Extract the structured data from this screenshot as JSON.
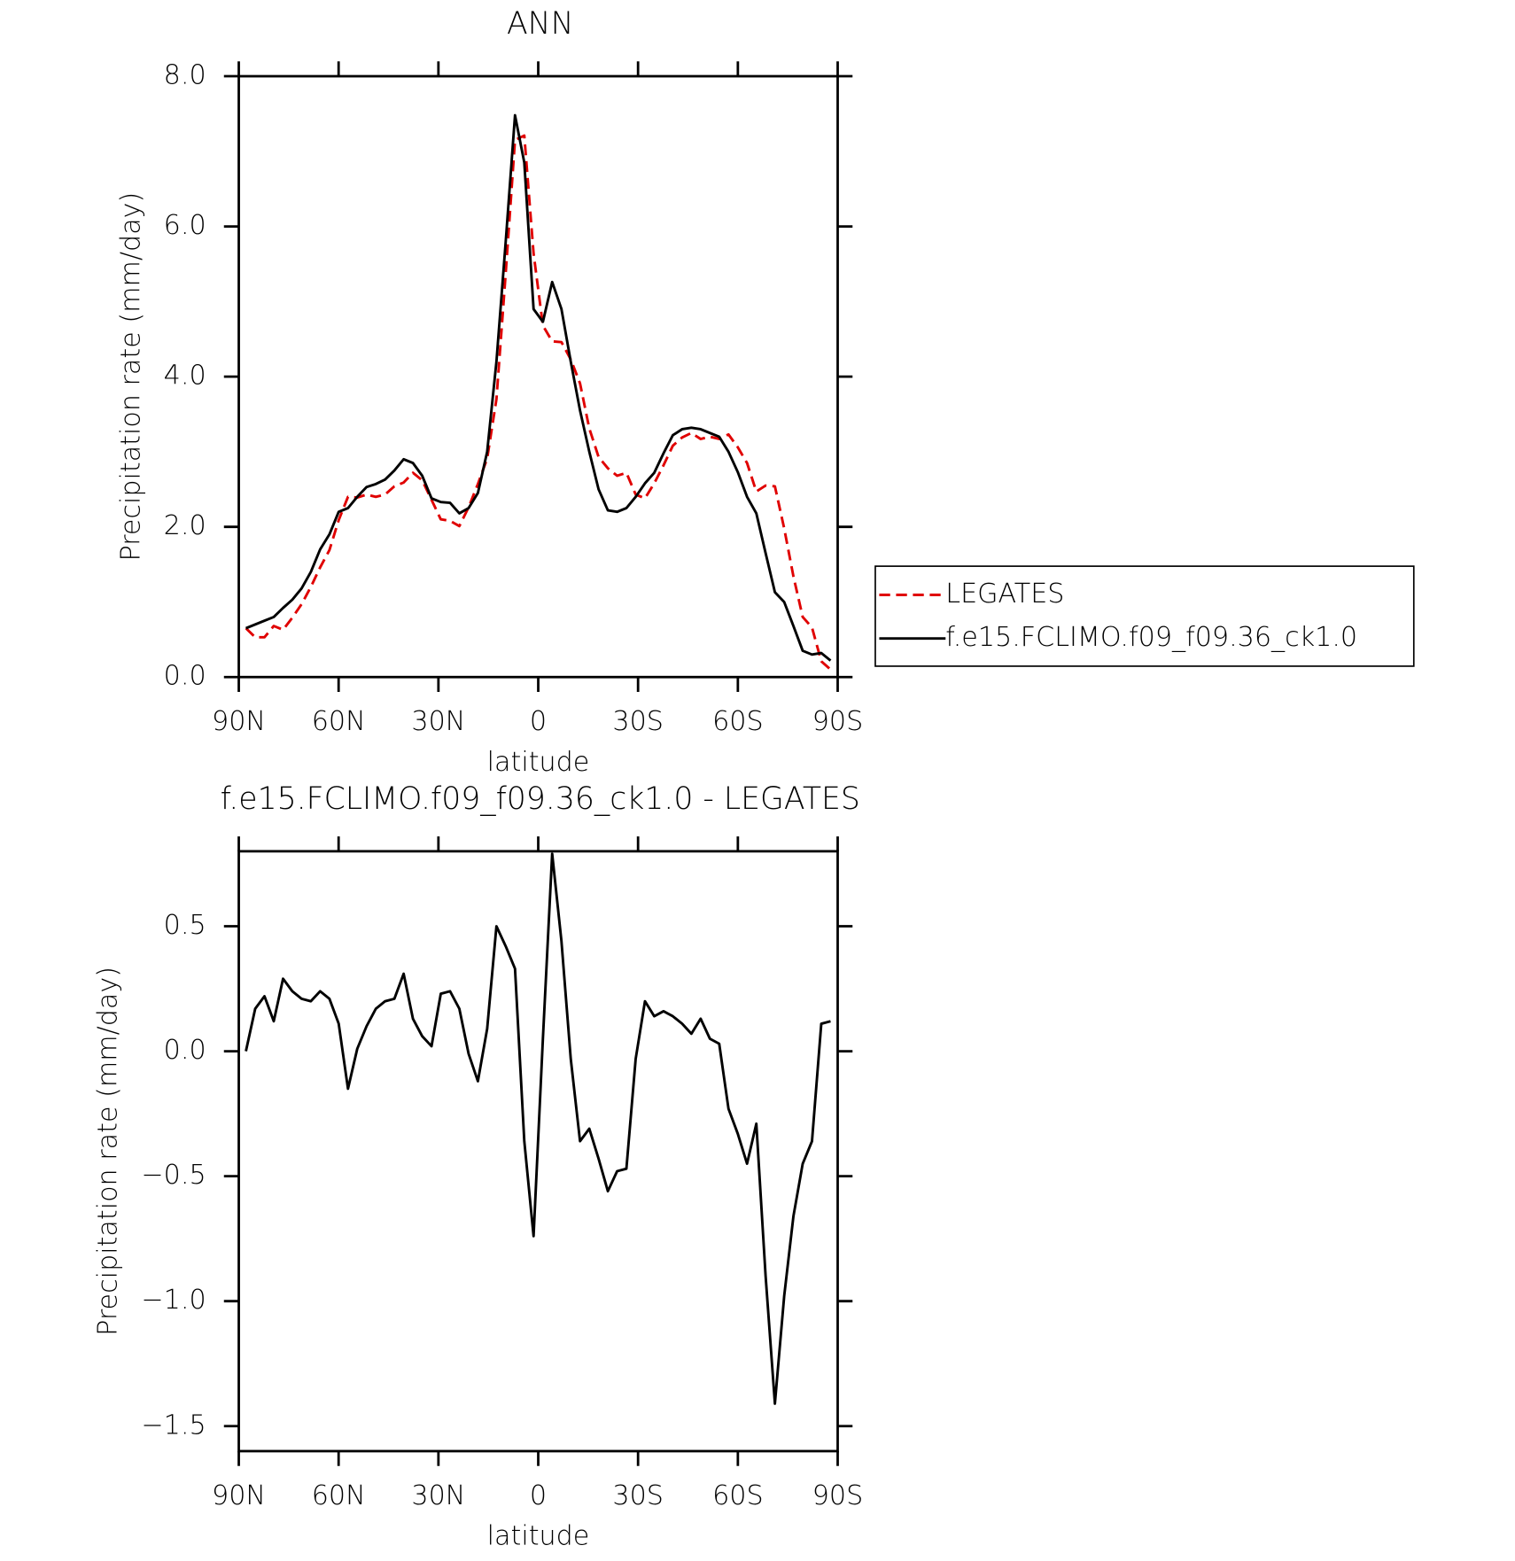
{
  "chart_data": [
    {
      "type": "line",
      "title": "ANN",
      "xlabel": "latitude",
      "ylabel": "Precipitation rate (mm/day)",
      "x": [
        87.86,
        85.07,
        82.28,
        79.49,
        76.7,
        73.92,
        71.13,
        68.34,
        65.55,
        62.76,
        59.97,
        57.18,
        54.39,
        51.6,
        48.81,
        46.03,
        43.24,
        40.45,
        37.66,
        34.87,
        32.08,
        29.29,
        26.5,
        23.71,
        20.93,
        18.14,
        15.35,
        12.56,
        9.77,
        6.98,
        4.19,
        1.4,
        -1.4,
        -4.19,
        -6.98,
        -9.77,
        -12.56,
        -15.35,
        -18.14,
        -20.93,
        -23.71,
        -26.5,
        -29.29,
        -32.08,
        -34.87,
        -37.66,
        -40.45,
        -43.24,
        -46.03,
        -48.81,
        -51.6,
        -54.39,
        -57.18,
        -59.97,
        -62.76,
        -65.55,
        -68.34,
        -71.13,
        -73.92,
        -76.7,
        -79.49,
        -82.28,
        -85.07,
        -87.86
      ],
      "series": [
        {
          "name": "LEGATES",
          "color": "#e00000",
          "dash": true,
          "values": [
            0.65,
            0.53,
            0.53,
            0.68,
            0.63,
            0.79,
            0.97,
            1.2,
            1.46,
            1.69,
            2.09,
            2.4,
            2.39,
            2.43,
            2.4,
            2.43,
            2.54,
            2.59,
            2.72,
            2.62,
            2.36,
            2.1,
            2.08,
            2.01,
            2.26,
            2.57,
            2.91,
            3.7,
            5.38,
            7.15,
            7.21,
            5.64,
            4.68,
            4.47,
            4.46,
            4.23,
            3.91,
            3.31,
            2.93,
            2.78,
            2.68,
            2.72,
            2.43,
            2.38,
            2.58,
            2.82,
            3.08,
            3.19,
            3.25,
            3.17,
            3.2,
            3.17,
            3.23,
            3.06,
            2.85,
            2.47,
            2.55,
            2.54,
            1.98,
            1.34,
            0.8,
            0.66,
            0.21,
            0.1
          ]
        },
        {
          "name": "f.e15.FCLIMO.f09_f09.36_ck1.0",
          "color": "#000000",
          "dash": false,
          "values": [
            0.65,
            0.7,
            0.75,
            0.8,
            0.92,
            1.03,
            1.18,
            1.4,
            1.7,
            1.9,
            2.2,
            2.25,
            2.4,
            2.53,
            2.57,
            2.63,
            2.75,
            2.9,
            2.85,
            2.68,
            2.38,
            2.33,
            2.32,
            2.18,
            2.25,
            2.45,
            3.0,
            4.2,
            5.8,
            7.48,
            6.85,
            4.9,
            4.73,
            5.26,
            4.9,
            4.2,
            3.55,
            3.0,
            2.5,
            2.22,
            2.2,
            2.25,
            2.4,
            2.58,
            2.72,
            2.98,
            3.22,
            3.3,
            3.32,
            3.3,
            3.25,
            3.2,
            3.0,
            2.73,
            2.4,
            2.18,
            1.65,
            1.13,
            1.0,
            0.68,
            0.35,
            0.3,
            0.32,
            0.22
          ]
        }
      ],
      "xlim": [
        90,
        -90
      ],
      "xticks": [
        {
          "value": 90,
          "label": "90N"
        },
        {
          "value": 60,
          "label": "60N"
        },
        {
          "value": 30,
          "label": "30N"
        },
        0,
        {
          "value": -30,
          "label": "30S"
        },
        {
          "value": -60,
          "label": "60S"
        },
        {
          "value": -90,
          "label": "90S"
        }
      ],
      "ylim": [
        0,
        8
      ],
      "yticks": [
        {
          "value": 0,
          "label": "0.0"
        },
        {
          "value": 2,
          "label": "2.0"
        },
        {
          "value": 4,
          "label": "4.0"
        },
        {
          "value": 6,
          "label": "6.0"
        },
        {
          "value": 8,
          "label": "8.0"
        }
      ],
      "legend": "right"
    },
    {
      "type": "line",
      "title": "f.e15.FCLIMO.f09_f09.36_ck1.0 - LEGATES",
      "xlabel": "latitude",
      "ylabel": "Precipitation rate (mm/day)",
      "x": [
        87.86,
        85.07,
        82.28,
        79.49,
        76.7,
        73.92,
        71.13,
        68.34,
        65.55,
        62.76,
        59.97,
        57.18,
        54.39,
        51.6,
        48.81,
        46.03,
        43.24,
        40.45,
        37.66,
        34.87,
        32.08,
        29.29,
        26.5,
        23.71,
        20.93,
        18.14,
        15.35,
        12.56,
        9.77,
        6.98,
        4.19,
        1.4,
        -1.4,
        -4.19,
        -6.98,
        -9.77,
        -12.56,
        -15.35,
        -18.14,
        -20.93,
        -23.71,
        -26.5,
        -29.29,
        -32.08,
        -34.87,
        -37.66,
        -40.45,
        -43.24,
        -46.03,
        -48.81,
        -51.6,
        -54.39,
        -57.18,
        -59.97,
        -62.76,
        -65.55,
        -68.34,
        -71.13,
        -73.92,
        -76.7,
        -79.49,
        -82.28,
        -85.07,
        -87.86
      ],
      "series": [
        {
          "color": "#000000",
          "dash": false,
          "values": [
            0.0,
            0.17,
            0.22,
            0.12,
            0.29,
            0.24,
            0.21,
            0.2,
            0.24,
            0.21,
            0.11,
            -0.15,
            0.01,
            0.1,
            0.17,
            0.2,
            0.21,
            0.31,
            0.13,
            0.06,
            0.02,
            0.23,
            0.24,
            0.17,
            -0.01,
            -0.12,
            0.09,
            0.5,
            0.42,
            0.33,
            -0.36,
            -0.74,
            0.05,
            0.79,
            0.44,
            -0.03,
            -0.36,
            -0.31,
            -0.43,
            -0.56,
            -0.48,
            -0.47,
            -0.03,
            0.2,
            0.14,
            0.16,
            0.14,
            0.11,
            0.07,
            0.13,
            0.05,
            0.03,
            -0.23,
            -0.33,
            -0.45,
            -0.29,
            -0.9,
            -1.41,
            -0.98,
            -0.66,
            -0.45,
            -0.36,
            0.11,
            0.12
          ]
        }
      ],
      "xlim": [
        90,
        -90
      ],
      "xticks": [
        {
          "value": 90,
          "label": "90N"
        },
        {
          "value": 60,
          "label": "60N"
        },
        {
          "value": 30,
          "label": "30N"
        },
        0,
        {
          "value": -30,
          "label": "30S"
        },
        {
          "value": -60,
          "label": "60S"
        },
        {
          "value": -90,
          "label": "90S"
        }
      ],
      "ylim": [
        -1.6,
        0.8
      ],
      "yticks": [
        {
          "value": -1.5,
          "label": "−1.5"
        },
        {
          "value": -1,
          "label": "−1.0"
        },
        {
          "value": -0.5,
          "label": "−0.5"
        },
        {
          "value": 0,
          "label": "0.0"
        },
        0.5
      ]
    }
  ]
}
